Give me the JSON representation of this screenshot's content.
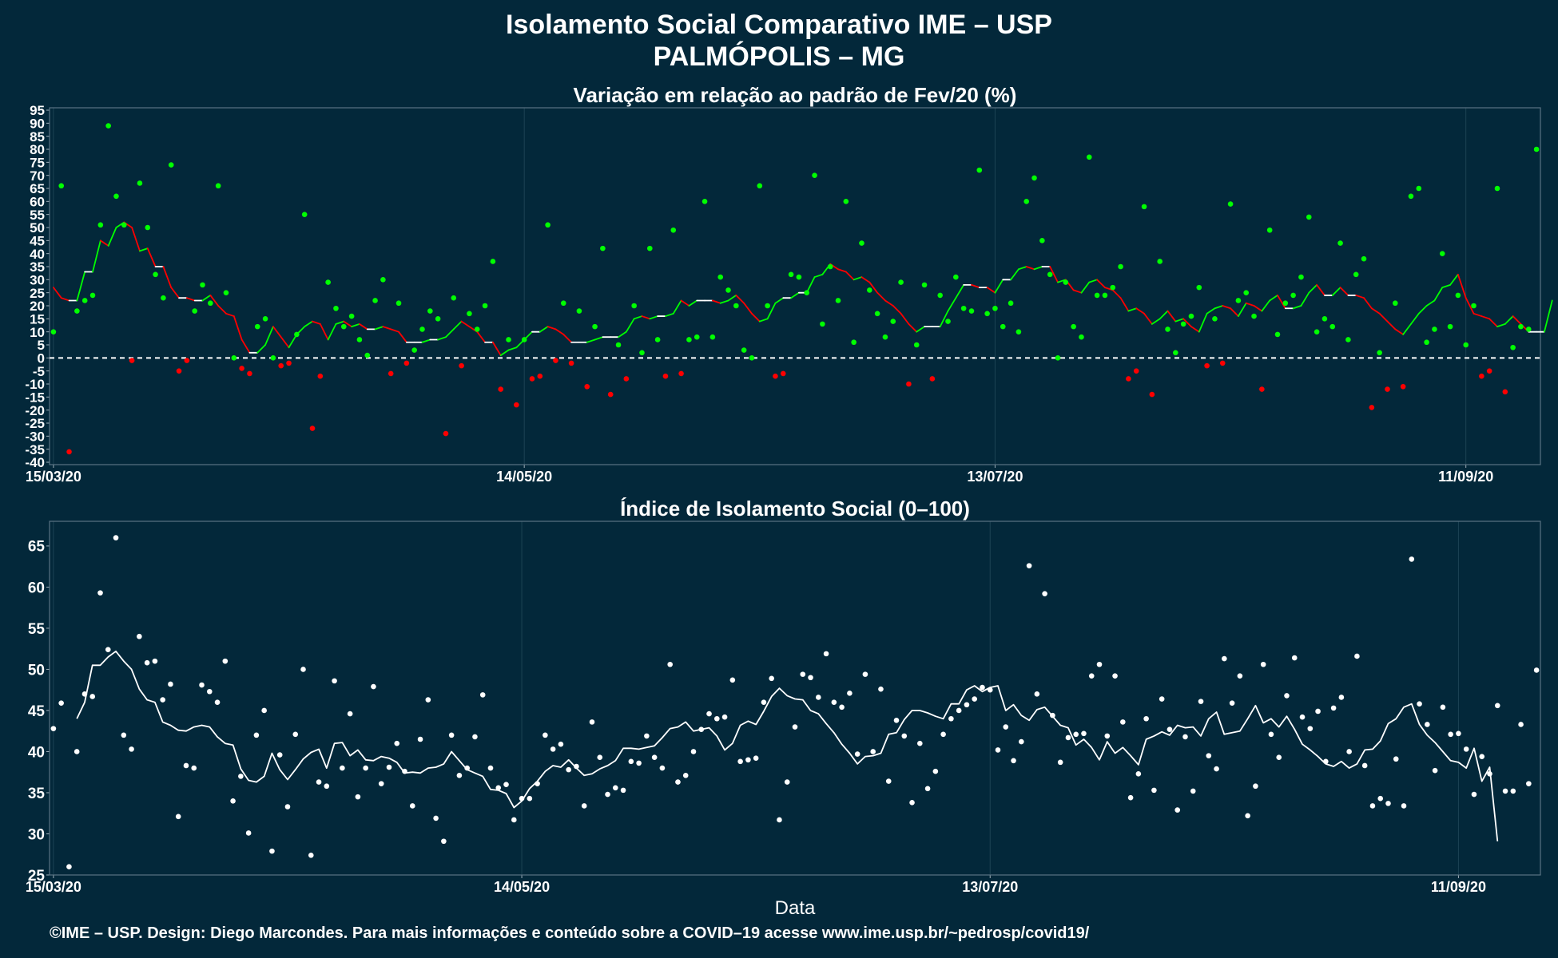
{
  "title": "Isolamento Social Comparativo IME – USP",
  "subtitle": "PALMÓPOLIS – MG",
  "footer": "©IME – USP. Design: Diego Marcondes. Para mais informações e conteúdo sobre a COVID–19 acesse www.ime.usp.br/~pedrosp/covid19/",
  "colors": {
    "background": "#03283a",
    "positive": "#00ff00",
    "negative": "#ff0000",
    "index": "#ffffff",
    "panel_border": "#5a7383",
    "grid": "#1d4354"
  },
  "chart_data": [
    {
      "type": "scatter",
      "title": "Variação em relação ao padrão de Fev/20 (%)",
      "xlabel": "",
      "ylabel": "",
      "x_start": "15/03/20",
      "x_end": "12/10/20",
      "x_ticks": [
        "15/03/20",
        "14/05/20",
        "13/07/20",
        "11/09/20"
      ],
      "ylim": [
        -40,
        95
      ],
      "y_ticks": [
        -40,
        -35,
        -30,
        -25,
        -20,
        -15,
        -10,
        -5,
        0,
        5,
        10,
        15,
        20,
        25,
        30,
        35,
        40,
        45,
        50,
        55,
        60,
        65,
        70,
        75,
        80,
        85,
        90,
        95
      ],
      "reference_line": 0,
      "points": [
        10,
        66,
        -36,
        18,
        22,
        24,
        51,
        89,
        62,
        51,
        -1,
        67,
        50,
        32,
        23,
        74,
        -5,
        -1,
        18,
        28,
        21,
        66,
        25,
        0,
        -4,
        -6,
        12,
        15,
        0,
        -3,
        -2,
        9,
        55,
        -27,
        -7,
        29,
        19,
        12,
        16,
        7,
        1,
        22,
        30,
        -6,
        21,
        -2,
        3,
        11,
        18,
        15,
        -29,
        23,
        -3,
        17,
        11,
        20,
        37,
        -12,
        7,
        -18,
        7,
        -8,
        -7,
        51,
        -1,
        21,
        -2,
        18,
        -11,
        12,
        42,
        -14,
        5,
        -8,
        20,
        2,
        42,
        7,
        -7,
        49,
        -6,
        7,
        8,
        60,
        8,
        31,
        26,
        20,
        3,
        0,
        66,
        20,
        -7,
        -6,
        32,
        31,
        25,
        70,
        13,
        35,
        22,
        60,
        6,
        44,
        26,
        17,
        8,
        14,
        29,
        -10,
        5,
        28,
        -8,
        24,
        14,
        31,
        19,
        18,
        72,
        17,
        19,
        12,
        21,
        10,
        60,
        69,
        45,
        32,
        0,
        29,
        12,
        8,
        77,
        24,
        24,
        27,
        35,
        -8,
        -5,
        58,
        -14,
        37,
        11,
        2,
        13,
        16,
        27,
        -3,
        15,
        -2,
        59,
        22,
        25,
        16,
        -12,
        49,
        9,
        21,
        24,
        31,
        54,
        10,
        15,
        12,
        44,
        7,
        32,
        38,
        -19,
        2,
        -12,
        21,
        -11,
        62,
        65,
        6,
        11,
        40,
        12,
        24,
        5,
        20,
        -7,
        -5,
        65,
        -13,
        4,
        12,
        11,
        80
      ],
      "moving_average": [
        27,
        23,
        22,
        22,
        33,
        33,
        45,
        43,
        50,
        52,
        50,
        41,
        42,
        35,
        35,
        27,
        23,
        23,
        22,
        22,
        24,
        20,
        17,
        16,
        7,
        2,
        2,
        5,
        12,
        8,
        4,
        9,
        12,
        14,
        13,
        7,
        13,
        14,
        12,
        13,
        11,
        11,
        12,
        11,
        10,
        6,
        6,
        6,
        7,
        7,
        8,
        11,
        14,
        12,
        10,
        6,
        6,
        1,
        3,
        4,
        7,
        10,
        10,
        12,
        11,
        9,
        6,
        6,
        6,
        7,
        8,
        8,
        8,
        10,
        15,
        16,
        15,
        16,
        16,
        17,
        22,
        20,
        22,
        22,
        22,
        21,
        22,
        24,
        21,
        17,
        14,
        15,
        21,
        23,
        23,
        25,
        25,
        31,
        32,
        36,
        34,
        33,
        30,
        31,
        29,
        25,
        22,
        20,
        17,
        13,
        10,
        12,
        12,
        12,
        18,
        23,
        28,
        28,
        27,
        27,
        25,
        30,
        30,
        34,
        35,
        34,
        35,
        35,
        29,
        30,
        26,
        25,
        29,
        30,
        27,
        26,
        23,
        18,
        19,
        17,
        13,
        15,
        18,
        14,
        15,
        12,
        10,
        17,
        19,
        20,
        19,
        16,
        21,
        20,
        18,
        22,
        24,
        19,
        19,
        20,
        25,
        28,
        24,
        24,
        27,
        24,
        24,
        23,
        19,
        17,
        14,
        11,
        9,
        13,
        17,
        20,
        22,
        27,
        28,
        32,
        23,
        17,
        16,
        15,
        12,
        13,
        16,
        13,
        10,
        10,
        10,
        22
      ]
    },
    {
      "type": "scatter",
      "title": "Índice de Isolamento Social (0–100)",
      "xlabel": "Data",
      "ylabel": "",
      "x_start": "15/03/20",
      "x_end": "12/10/20",
      "x_ticks": [
        "15/03/20",
        "14/05/20",
        "13/07/20",
        "11/09/20"
      ],
      "ylim": [
        25,
        68
      ],
      "y_ticks": [
        25,
        30,
        35,
        40,
        45,
        50,
        55,
        60,
        65
      ],
      "points": [
        42.8,
        45.9,
        26.0,
        40.0,
        47.0,
        46.7,
        59.3,
        52.4,
        66.0,
        42.0,
        40.3,
        54.0,
        50.8,
        51.0,
        46.3,
        48.2,
        32.1,
        38.3,
        38.0,
        48.1,
        47.3,
        46.0,
        51.0,
        34.0,
        37.0,
        30.1,
        42.0,
        45.0,
        27.9,
        39.6,
        33.3,
        42.1,
        50.0,
        27.4,
        36.3,
        35.8,
        48.6,
        38.0,
        44.6,
        34.5,
        38.0,
        47.9,
        36.1,
        38.1,
        41.0,
        37.6,
        33.4,
        41.5,
        46.3,
        31.9,
        29.1,
        42.0,
        37.1,
        38.0,
        41.8,
        46.9,
        38.0,
        35.6,
        36.0,
        31.7,
        34.3,
        34.3,
        36.1,
        42.0,
        40.3,
        40.9,
        37.8,
        38.2,
        33.4,
        43.6,
        39.3,
        34.8,
        35.6,
        35.3,
        38.8,
        38.6,
        41.9,
        39.3,
        38.0,
        50.6,
        36.3,
        37.1,
        40.0,
        42.7,
        44.6,
        44.0,
        44.2,
        48.7,
        38.8,
        39.0,
        39.2,
        46.0,
        48.9,
        31.7,
        36.3,
        43.0,
        49.4,
        49.0,
        46.6,
        51.9,
        46.0,
        45.4,
        47.1,
        39.7,
        49.4,
        40.0,
        47.6,
        36.4,
        43.8,
        41.9,
        33.8,
        41.0,
        35.5,
        37.6,
        42.1,
        44.0,
        45.0,
        45.7,
        46.4,
        47.8,
        47.5,
        40.2,
        43.0,
        38.9,
        41.2,
        62.6,
        47.0,
        59.2,
        44.4,
        38.7,
        41.7,
        42.1,
        42.2,
        49.2,
        50.6,
        41.9,
        49.2,
        43.6,
        34.4,
        37.3,
        44.0,
        35.3,
        46.4,
        42.7,
        32.9,
        41.8,
        35.2,
        46.1,
        39.5,
        37.9,
        51.3,
        45.9,
        49.2,
        32.2,
        35.8,
        50.6,
        42.1,
        39.3,
        46.8,
        51.4,
        44.2,
        42.8,
        44.9,
        38.8,
        45.3,
        46.6,
        40.0,
        51.6,
        38.3,
        33.4,
        34.3,
        33.7,
        39.1,
        33.4,
        63.4,
        45.8,
        43.3,
        37.7,
        45.4,
        42.1,
        42.2,
        40.3,
        34.8,
        39.4,
        37.3,
        45.6,
        35.2,
        35.2,
        43.3,
        36.1,
        49.9
      ],
      "moving_average": [
        null,
        null,
        null,
        44.0,
        46.0,
        50.5,
        50.5,
        51.5,
        52.2,
        51.0,
        50.0,
        47.6,
        46.3,
        46.0,
        43.6,
        43.2,
        42.6,
        42.5,
        43.0,
        43.2,
        43.0,
        41.8,
        41.0,
        40.8,
        37.9,
        36.5,
        36.3,
        37.0,
        39.8,
        37.8,
        36.6,
        37.8,
        39.1,
        39.9,
        40.3,
        38.0,
        41.0,
        41.1,
        39.5,
        40.2,
        39.0,
        38.9,
        39.4,
        39.2,
        38.7,
        37.4,
        37.5,
        37.4,
        38.0,
        38.1,
        38.5,
        40.0,
        38.9,
        37.8,
        37.4,
        37.0,
        35.4,
        35.3,
        34.9,
        33.2,
        34.0,
        35.5,
        36.4,
        37.6,
        38.3,
        38.1,
        39.0,
        38.0,
        37.1,
        37.3,
        37.9,
        38.3,
        38.9,
        40.4,
        40.4,
        40.3,
        40.5,
        40.7,
        41.7,
        42.8,
        43.0,
        43.6,
        42.5,
        42.7,
        42.9,
        41.9,
        40.2,
        41.0,
        43.2,
        43.7,
        43.3,
        44.9,
        46.7,
        47.7,
        46.8,
        46.4,
        46.3,
        45.0,
        44.6,
        43.4,
        42.3,
        40.9,
        39.8,
        38.5,
        39.4,
        39.5,
        39.8,
        42.1,
        42.3,
        43.9,
        45.0,
        45.0,
        44.7,
        44.3,
        44.0,
        45.8,
        45.8,
        47.5,
        48.0,
        47.3,
        47.8,
        48.0,
        45.0,
        45.7,
        44.4,
        43.8,
        45.1,
        45.4,
        44.3,
        43.2,
        42.9,
        40.8,
        41.5,
        40.5,
        39.0,
        41.2,
        39.8,
        40.5,
        39.5,
        38.4,
        41.5,
        41.9,
        42.4,
        42.0,
        43.2,
        42.9,
        43.0,
        41.9,
        44.0,
        44.8,
        42.1,
        42.3,
        42.5,
        44.0,
        45.6,
        43.5,
        44.0,
        43.0,
        44.3,
        42.7,
        40.9,
        40.2,
        39.4,
        38.5,
        38.2,
        38.8,
        38.0,
        38.5,
        40.2,
        40.3,
        41.3,
        43.4,
        44.0,
        45.4,
        45.8,
        43.3,
        42.0,
        41.1,
        40.0,
        38.9,
        38.7,
        38.0,
        40.4,
        36.4,
        38.1,
        29.1
      ]
    }
  ]
}
